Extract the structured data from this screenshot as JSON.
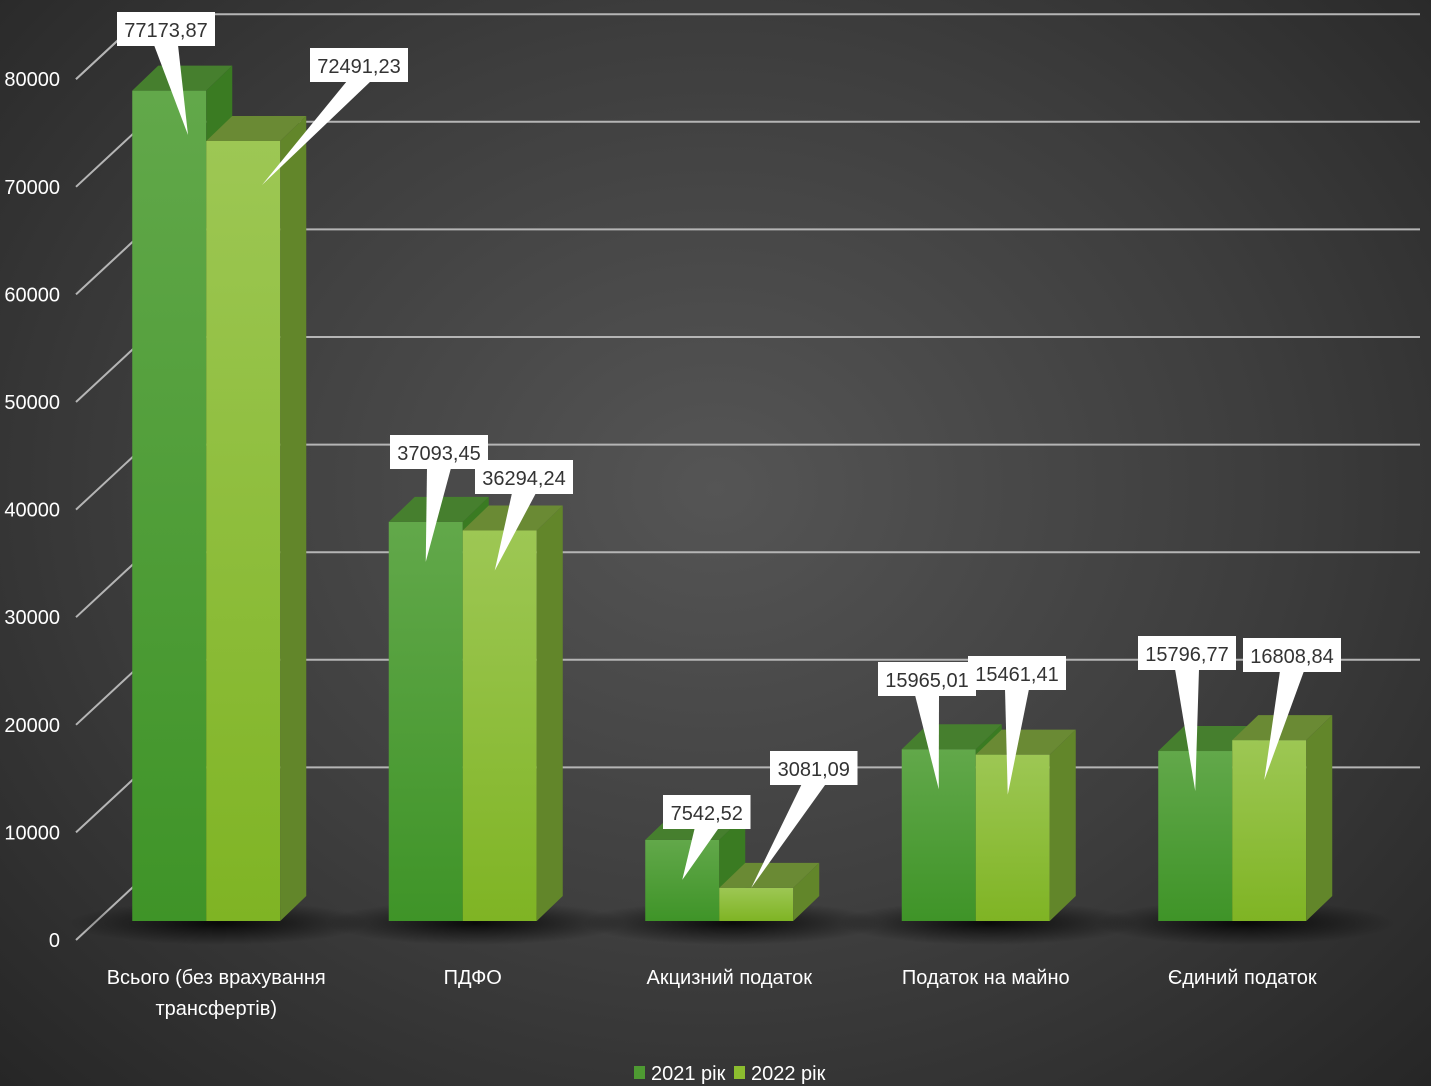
{
  "chart_data": {
    "type": "bar",
    "title": "",
    "xlabel": "",
    "ylabel": "",
    "ylim": [
      0,
      80000
    ],
    "yticks": [
      0,
      10000,
      20000,
      30000,
      40000,
      50000,
      60000,
      70000,
      80000
    ],
    "ytick_labels": [
      "0",
      "10000",
      "20000",
      "30000",
      "40000",
      "50000",
      "60000",
      "70000",
      "80000"
    ],
    "grid": true,
    "legend_position": "bottom",
    "categories": [
      [
        "Всього (без врахування",
        "трансфертів)"
      ],
      [
        "ПДФО"
      ],
      [
        "Акцизний податок"
      ],
      [
        "Податок на майно"
      ],
      [
        "Єдиний податок"
      ]
    ],
    "series": [
      {
        "name": "2021 рік",
        "color": "#4e9a32",
        "values": [
          77173.87,
          37093.45,
          7542.52,
          15965.01,
          15796.77
        ],
        "labels": [
          "77173,87",
          "37093,45",
          "7542,52",
          "15965,01",
          "15796,77"
        ]
      },
      {
        "name": "2022 рік",
        "color": "#8cbd2f",
        "values": [
          72491.23,
          36294.24,
          3081.09,
          15461.41,
          16808.84
        ],
        "labels": [
          "72491,23",
          "36294,24",
          "3081,09",
          "15461,41",
          "16808,84"
        ]
      }
    ]
  }
}
